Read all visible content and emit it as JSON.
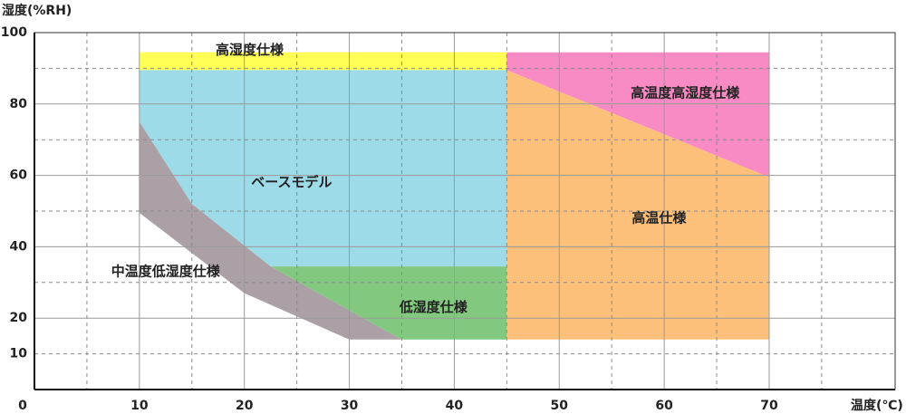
{
  "chart_data": {
    "type": "area",
    "title": "",
    "xlabel": "温度(℃)",
    "ylabel": "湿度(%RH)",
    "xlim": [
      0,
      82
    ],
    "ylim": [
      0,
      100
    ],
    "x_ticks": [
      0,
      10,
      20,
      30,
      40,
      50,
      60,
      70
    ],
    "y_ticks": [
      10,
      20,
      40,
      60,
      80,
      100
    ],
    "x_grid": [
      5,
      10,
      15,
      20,
      25,
      30,
      35,
      40,
      45,
      50,
      55,
      60,
      65,
      70,
      75,
      82
    ],
    "y_grid": [
      10,
      20,
      30,
      40,
      50,
      60,
      70,
      80,
      90,
      100
    ],
    "grid": true,
    "regions": [
      {
        "label": "高湿度仕様",
        "color": "#ffff55",
        "points": [
          [
            10,
            89.5
          ],
          [
            45,
            89.5
          ],
          [
            45,
            94.5
          ],
          [
            10,
            94.5
          ]
        ],
        "label_at": [
          20.5,
          95
        ]
      },
      {
        "label": "ベースモデル",
        "color": "#9ddbe8",
        "points": [
          [
            10,
            75
          ],
          [
            15,
            52
          ],
          [
            22.5,
            34.5
          ],
          [
            45,
            34.5
          ],
          [
            45,
            89.5
          ],
          [
            10,
            89.5
          ]
        ],
        "label_at": [
          24.5,
          58
        ]
      },
      {
        "label": "高温度高湿度仕様",
        "color": "#f88bc4",
        "points": [
          [
            45,
            94.5
          ],
          [
            70,
            94.5
          ],
          [
            70,
            59.5
          ],
          [
            45,
            89.5
          ]
        ],
        "label_at": [
          62,
          83
        ]
      },
      {
        "label": "高温仕様",
        "color": "#fdc07a",
        "points": [
          [
            45,
            89.5
          ],
          [
            70,
            59.5
          ],
          [
            70,
            14
          ],
          [
            45,
            14
          ]
        ],
        "label_at": [
          59.5,
          48
        ]
      },
      {
        "label": "低湿度仕様",
        "color": "#82c97f",
        "points": [
          [
            22.5,
            34.5
          ],
          [
            45,
            34.5
          ],
          [
            45,
            14
          ],
          [
            35,
            14
          ]
        ],
        "label_at": [
          38,
          23
        ]
      },
      {
        "label": "中温度低湿度仕様",
        "color": "#aaa0a6",
        "points": [
          [
            10,
            75
          ],
          [
            15,
            52
          ],
          [
            22.5,
            34.5
          ],
          [
            35,
            14
          ],
          [
            30,
            14
          ],
          [
            20,
            27
          ],
          [
            10,
            49.5
          ]
        ],
        "label_at": [
          12.5,
          33
        ]
      }
    ]
  }
}
